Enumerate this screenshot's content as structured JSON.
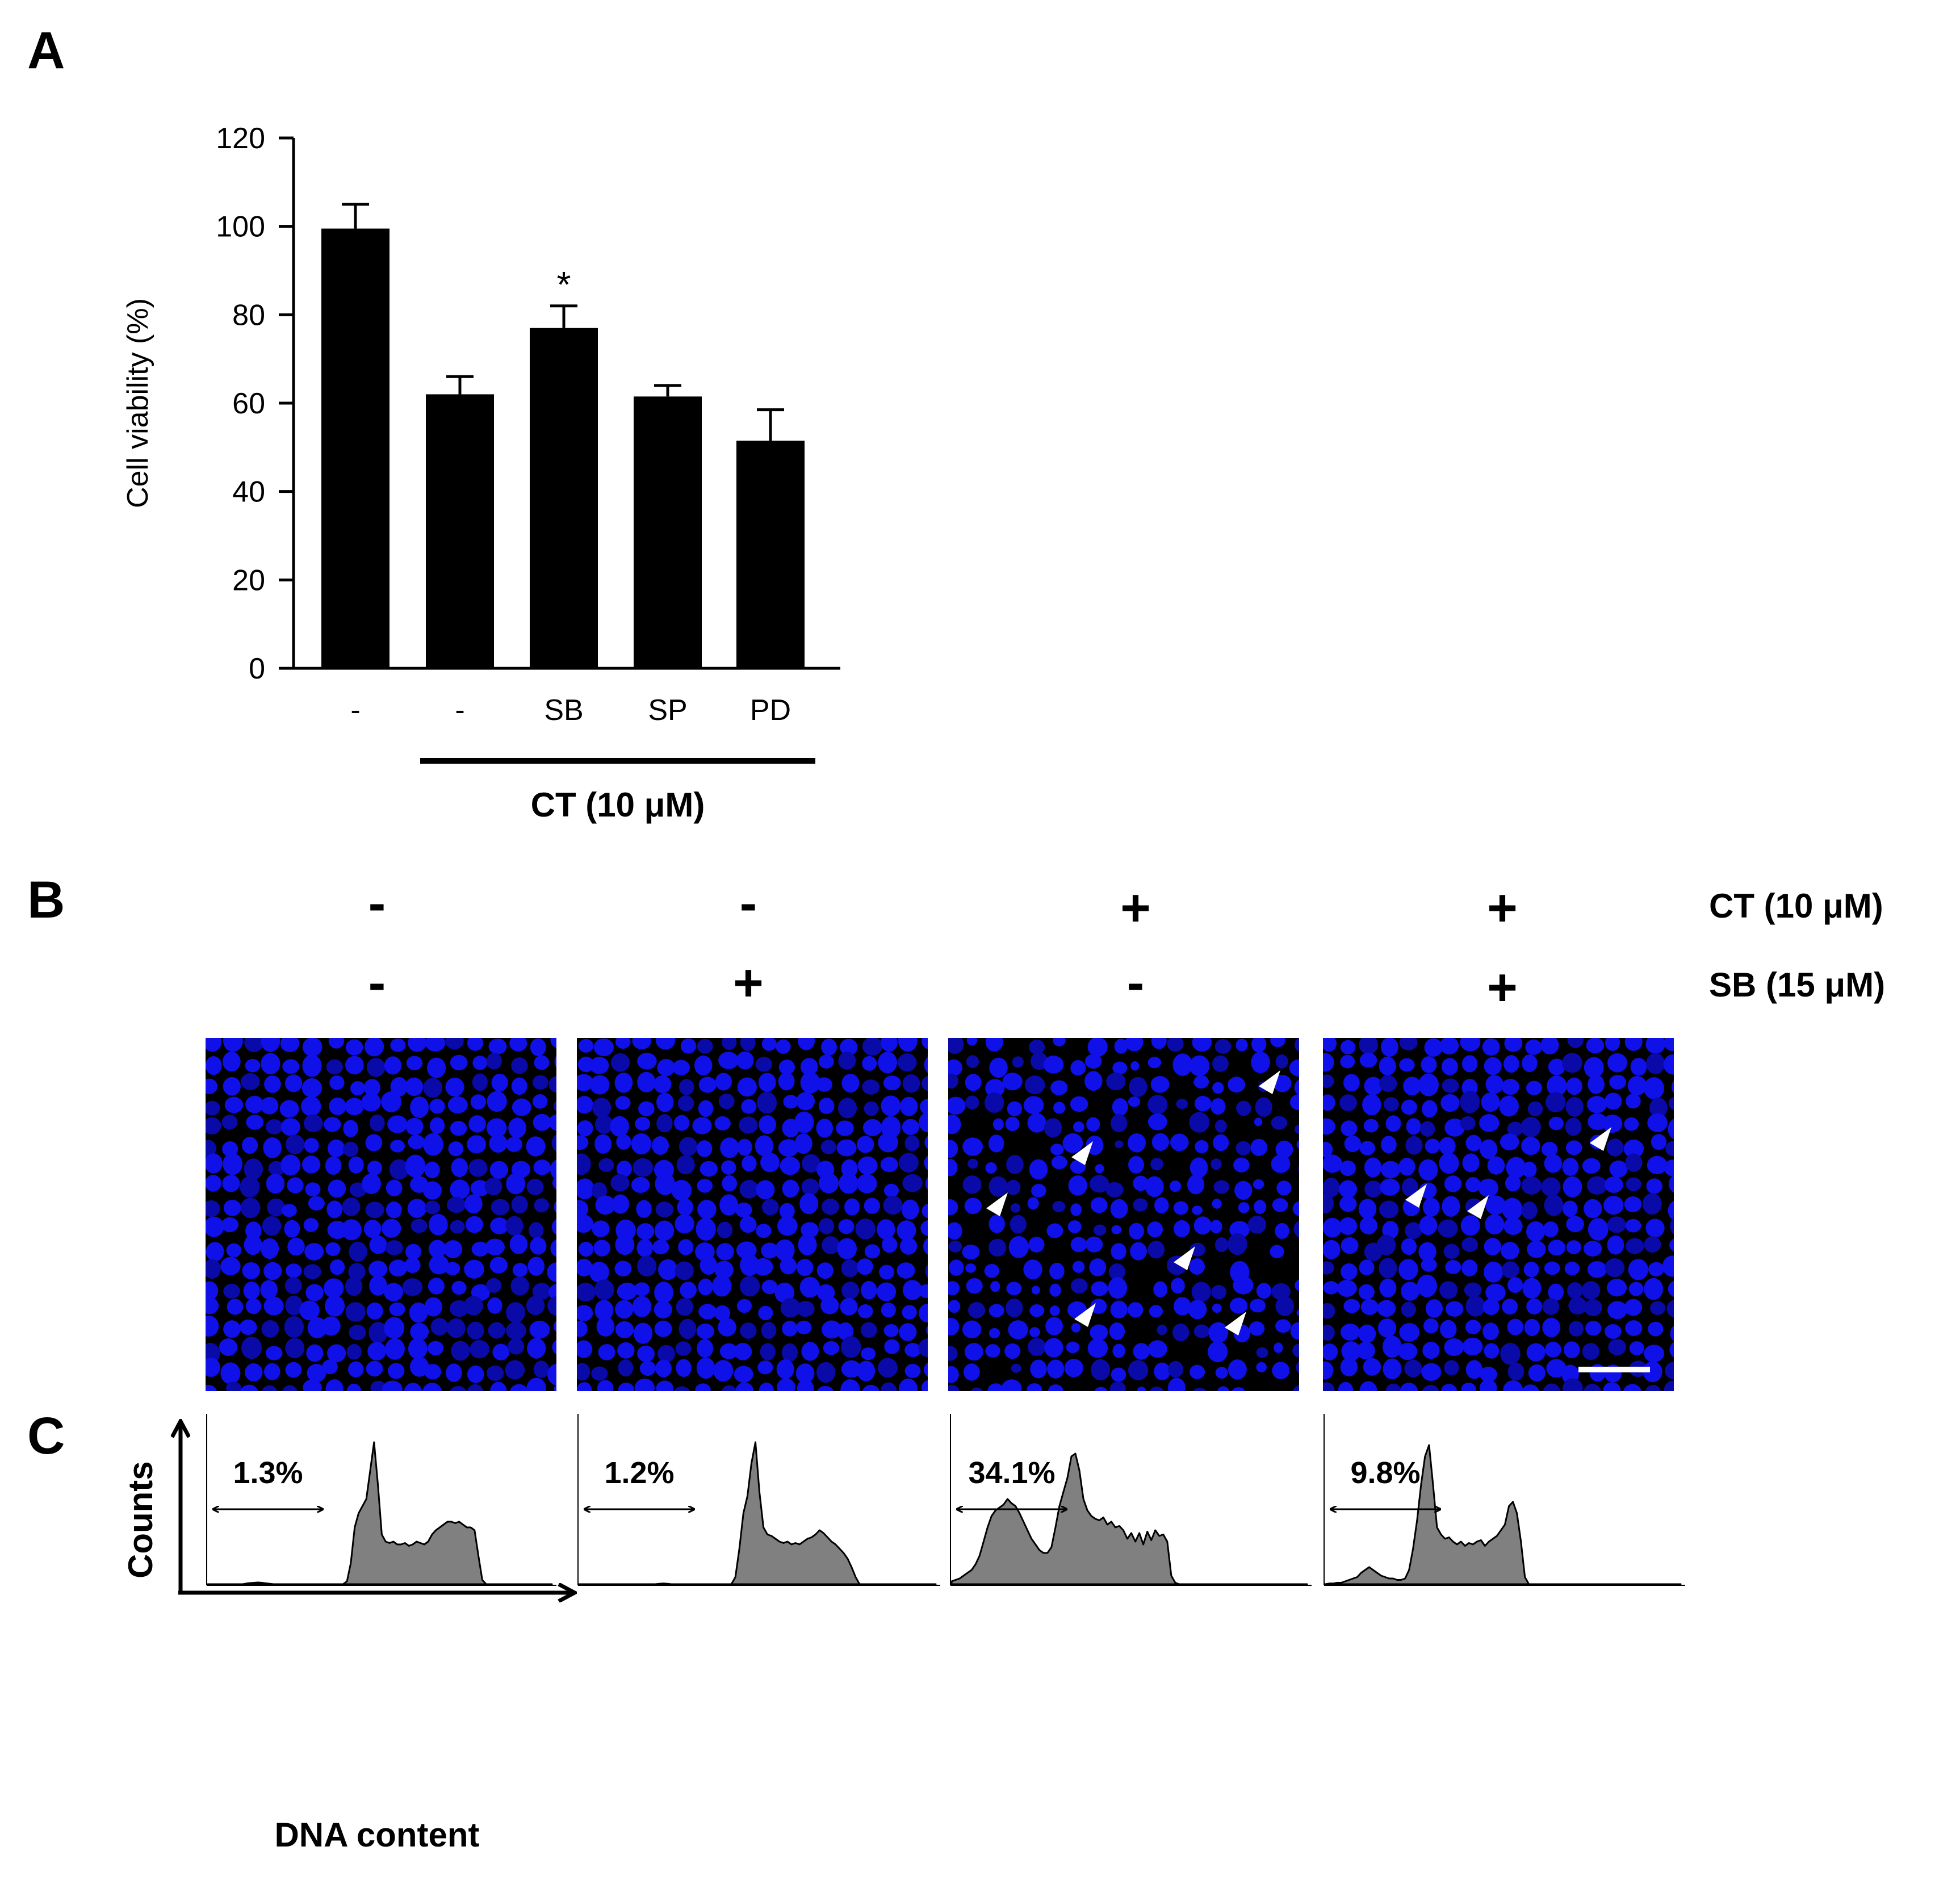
{
  "panels": {
    "a": "A",
    "b": "B",
    "c": "C"
  },
  "chart_data": [
    {
      "type": "bar",
      "panel": "A",
      "title": "",
      "ylabel": "Cell viability (%)",
      "xlabel": "",
      "ylim": [
        0,
        120
      ],
      "yticks": [
        "0",
        "20",
        "40",
        "60",
        "80",
        "100",
        "120"
      ],
      "categories": [
        "-",
        "-",
        "SB",
        "SP",
        "PD"
      ],
      "values": [
        99.5,
        62,
        77,
        61.5,
        51.5
      ],
      "errors": [
        5.5,
        4,
        5,
        2.5,
        7
      ],
      "significance": [
        "",
        "",
        "*",
        "",
        ""
      ],
      "group_label": "CT (10 μM)",
      "colors": {
        "bar": "#000000"
      }
    },
    {
      "type": "area",
      "panel": "C",
      "xlabel": "DNA content",
      "ylabel": "Counts",
      "fill_color": "#808080",
      "series": [
        {
          "name": "CT- SB-",
          "subG1_percent": "1.3%",
          "values": [
            0,
            0,
            0,
            0,
            0,
            0,
            0,
            0,
            0,
            0,
            0.5,
            0.8,
            1,
            1.2,
            1,
            0.6,
            0.3,
            0,
            0,
            0,
            0,
            0,
            0,
            0,
            0,
            0,
            0,
            0,
            0,
            0,
            0,
            0,
            0,
            0,
            0,
            0,
            2,
            15,
            40,
            50,
            55,
            60,
            80,
            100,
            70,
            35,
            30,
            29,
            30,
            28,
            28,
            29,
            27,
            28,
            30,
            29,
            28,
            30,
            35,
            38,
            40,
            42,
            44,
            44,
            43,
            44,
            42,
            40,
            40,
            38,
            20,
            3,
            0,
            0,
            0,
            0,
            0,
            0,
            0,
            0,
            0,
            0,
            0,
            0,
            0,
            0,
            0,
            0,
            0,
            0
          ]
        },
        {
          "name": "CT- SB+",
          "subG1_percent": "1.2%",
          "values": [
            0,
            0,
            0,
            0,
            0,
            0,
            0,
            0,
            0,
            0,
            0,
            0,
            0,
            0,
            0,
            0,
            0,
            0,
            0,
            0,
            0.3,
            0.5,
            0.3,
            0,
            0,
            0,
            0,
            0,
            0,
            0,
            0,
            0,
            0,
            0,
            0,
            0,
            0,
            0,
            0,
            5,
            25,
            50,
            62,
            85,
            100,
            65,
            40,
            35,
            34,
            32,
            30,
            29,
            30,
            28,
            29,
            28,
            30,
            32,
            33,
            35,
            38,
            36,
            33,
            30,
            28,
            25,
            22,
            18,
            12,
            5,
            0,
            0,
            0,
            0,
            0,
            0,
            0,
            0,
            0,
            0,
            0,
            0,
            0,
            0,
            0,
            0,
            0,
            0,
            0,
            0
          ]
        },
        {
          "name": "CT+ SB-",
          "subG1_percent": "34.1%",
          "values": [
            2,
            3,
            4,
            6,
            8,
            10,
            14,
            20,
            30,
            40,
            48,
            52,
            54,
            56,
            60,
            57,
            55,
            50,
            44,
            38,
            32,
            28,
            24,
            22,
            22,
            26,
            40,
            55,
            65,
            75,
            90,
            92,
            80,
            60,
            52,
            48,
            46,
            45,
            47,
            42,
            44,
            40,
            41,
            38,
            32,
            36,
            30,
            36,
            28,
            37,
            31,
            38,
            34,
            35,
            30,
            6,
            1,
            0,
            0,
            0,
            0,
            0,
            0,
            0,
            0,
            0,
            0,
            0,
            0,
            0,
            0,
            0,
            0,
            0,
            0,
            0,
            0,
            0,
            0,
            0,
            0,
            0,
            0,
            0,
            0,
            0,
            0,
            0,
            0,
            0
          ]
        },
        {
          "name": "CT+ SB+",
          "subG1_percent": "9.8%",
          "values": [
            0,
            0.5,
            0.5,
            1,
            1,
            2,
            3,
            4,
            5,
            8,
            10,
            12,
            10,
            8,
            6,
            5,
            4,
            4,
            3,
            3,
            4,
            10,
            25,
            45,
            70,
            90,
            98,
            70,
            40,
            35,
            32,
            33,
            30,
            28,
            30,
            27,
            29,
            28,
            30,
            31,
            27,
            30,
            32,
            34,
            38,
            42,
            55,
            58,
            50,
            30,
            5,
            0,
            0,
            0,
            0,
            0,
            0,
            0,
            0,
            0,
            0,
            0,
            0,
            0,
            0,
            0,
            0,
            0,
            0,
            0,
            0,
            0,
            0,
            0,
            0,
            0,
            0,
            0,
            0,
            0,
            0,
            0,
            0,
            0,
            0,
            0,
            0,
            0,
            0,
            0
          ]
        }
      ]
    }
  ],
  "panel_b": {
    "row_labels": [
      "CT (10 μM)",
      "SB (15 μM)"
    ],
    "columns": [
      {
        "ct": "-",
        "sb": "-"
      },
      {
        "ct": "-",
        "sb": "+"
      },
      {
        "ct": "+",
        "sb": "-"
      },
      {
        "ct": "+",
        "sb": "+"
      }
    ],
    "image_colors": {
      "background": "#000000",
      "nucleus": "#1010e8",
      "nucleus_dim": "#0a0aa8",
      "arrowhead": "#ffffff"
    }
  }
}
